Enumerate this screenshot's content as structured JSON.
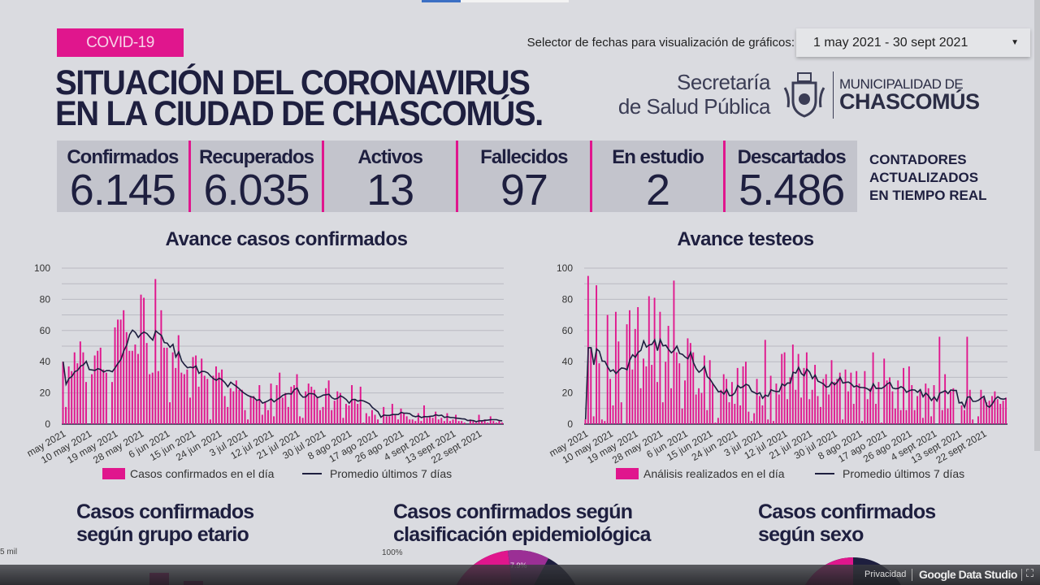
{
  "header": {
    "badge": "COVID-19",
    "date_selector_label": "Selector de fechas para visualización de gráficos:",
    "date_range": "1 may 2021 - 30 sept 2021",
    "title_line1": "SITUACIÓN DEL CORONAVIRUS",
    "title_line2": "EN LA CIUDAD DE CHASCOMÚS.",
    "logo": {
      "secretaria_line1": "Secretaría",
      "secretaria_line2": "de Salud Pública",
      "municipalidad": "MUNICIPALIDAD DE",
      "city": "CHASCOMÚS"
    }
  },
  "counters": [
    {
      "label": "Confirmados",
      "value": "6.145"
    },
    {
      "label": "Recuperados",
      "value": "6.035"
    },
    {
      "label": "Activos",
      "value": "13"
    },
    {
      "label": "Fallecidos",
      "value": "97"
    },
    {
      "label": "En estudio",
      "value": "2"
    },
    {
      "label": "Descartados",
      "value": "5.486"
    }
  ],
  "counters_note": [
    "CONTADORES",
    "ACTUALIZADOS",
    "EN TIEMPO REAL"
  ],
  "colors": {
    "accent": "#e0168d",
    "navy": "#1e1f3f",
    "background": "#dadbe0",
    "counter_bg": "#c3c4cc"
  },
  "chart_data": [
    {
      "type": "bar",
      "title": "Avance casos confirmados",
      "ylim": [
        0,
        100
      ],
      "yticks": [
        "0",
        "20",
        "40",
        "60",
        "80",
        "100"
      ],
      "grid": true,
      "legend_position": "bottom",
      "x_tick_labels": [
        "may 2021",
        "10 may 2021",
        "19 may 2021",
        "28 may 2021",
        "6 jun 2021",
        "15 jun 2021",
        "24 jun 2021",
        "3 jul 2021",
        "12 jul 2021",
        "21 jul 2021",
        "30 jul 2021",
        "8 ago 2021",
        "17 ago 2021",
        "26 ago 2021",
        "4 sept 2021",
        "13 sept 2021",
        "22 sept 2021"
      ],
      "x_range": [
        "2021-05-01",
        "2021-09-30"
      ],
      "series": [
        {
          "name": "Casos confirmados en el día",
          "type": "bar",
          "color": "#e0168d",
          "values": [
            40,
            11,
            37,
            34,
            46,
            39,
            53,
            46,
            27,
            0,
            32,
            44,
            47,
            49,
            35,
            33,
            0,
            27,
            62,
            67,
            67,
            73,
            59,
            47,
            47,
            51,
            45,
            83,
            81,
            52,
            32,
            33,
            93,
            34,
            73,
            49,
            49,
            14,
            46,
            36,
            57,
            33,
            32,
            35,
            17,
            43,
            44,
            24,
            42,
            31,
            29,
            3,
            31,
            37,
            33,
            35,
            18,
            11,
            23,
            21,
            28,
            22,
            22,
            9,
            3,
            18,
            18,
            15,
            25,
            6,
            14,
            9,
            26,
            5,
            25,
            33,
            17,
            20,
            11,
            24,
            25,
            32,
            5,
            4,
            21,
            26,
            24,
            22,
            17,
            9,
            11,
            23,
            28,
            9,
            15,
            21,
            20,
            4,
            13,
            12,
            25,
            16,
            13,
            24,
            1,
            7,
            5,
            9,
            6,
            3,
            0,
            11,
            5,
            5,
            13,
            6,
            3,
            10,
            7,
            5,
            3,
            3,
            2,
            7,
            2,
            12,
            4,
            5,
            4,
            8,
            3,
            4,
            2,
            7,
            2,
            3,
            6,
            2,
            2,
            1,
            0,
            3,
            2,
            1,
            6,
            2,
            3,
            1,
            5,
            2,
            1,
            2,
            1
          ]
        },
        {
          "name": "Promedio últimos 7 días",
          "type": "line",
          "color": "#1e1f3f",
          "derived_from": "7-day rolling mean"
        }
      ]
    },
    {
      "type": "bar",
      "title": "Avance testeos",
      "ylim": [
        0,
        100
      ],
      "yticks": [
        "0",
        "20",
        "40",
        "60",
        "80",
        "100"
      ],
      "grid": true,
      "legend_position": "bottom",
      "x_tick_labels": [
        "may 2021",
        "10 may 2021",
        "19 may 2021",
        "28 may 2021",
        "6 jun 2021",
        "15 jun 2021",
        "24 jun 2021",
        "3 jul 2021",
        "12 jul 2021",
        "21 jul 2021",
        "30 jul 2021",
        "8 ago 2021",
        "17 ago 2021",
        "26 ago 2021",
        "4 sept 2021",
        "13 sept 2021",
        "22 sept 2021"
      ],
      "x_range": [
        "2021-05-01",
        "2021-09-30"
      ],
      "series": [
        {
          "name": "Análisis realizados en el día",
          "type": "bar",
          "color": "#e0168d",
          "values": [
            3,
            95,
            49,
            5,
            89,
            39,
            3,
            2,
            70,
            29,
            12,
            72,
            53,
            14,
            0,
            64,
            73,
            35,
            61,
            75,
            23,
            42,
            37,
            82,
            38,
            81,
            27,
            72,
            14,
            40,
            63,
            23,
            92,
            46,
            39,
            10,
            28,
            55,
            52,
            46,
            19,
            23,
            20,
            44,
            9,
            41,
            26,
            1,
            4,
            22,
            32,
            29,
            14,
            27,
            13,
            36,
            12,
            37,
            40,
            8,
            2,
            7,
            29,
            18,
            12,
            54,
            3,
            31,
            2,
            26,
            19,
            45,
            46,
            16,
            30,
            51,
            22,
            45,
            17,
            36,
            46,
            16,
            22,
            38,
            18,
            11,
            29,
            32,
            19,
            41,
            27,
            29,
            33,
            3,
            35,
            21,
            33,
            13,
            34,
            26,
            2,
            34,
            16,
            23,
            46,
            13,
            27,
            1,
            42,
            28,
            30,
            21,
            10,
            28,
            9,
            36,
            9,
            37,
            25,
            9,
            18,
            21,
            4,
            26,
            23,
            5,
            25,
            0,
            56,
            9,
            32,
            10,
            21,
            23,
            0,
            0,
            12,
            9,
            56,
            22,
            3,
            0,
            5,
            22,
            17,
            14,
            15,
            18,
            21,
            16,
            13,
            15,
            17
          ]
        },
        {
          "name": "Promedio últimos 7 días",
          "type": "line",
          "color": "#1e1f3f",
          "derived_from": "7-day rolling mean"
        }
      ]
    }
  ],
  "bottom": {
    "age_title": [
      "Casos confirmados",
      "según grupo etario"
    ],
    "age_axis_top": "5 mil",
    "epi_title": [
      "Casos confirmados según",
      "clasificación epidemiológica"
    ],
    "epi_axis_top": "100%",
    "epi_slice_label": "7.9%",
    "sex_title": [
      "Casos confirmados",
      "según sexo"
    ]
  },
  "footer": {
    "privacy": "Privacidad",
    "brand": "Google Data Studio"
  }
}
